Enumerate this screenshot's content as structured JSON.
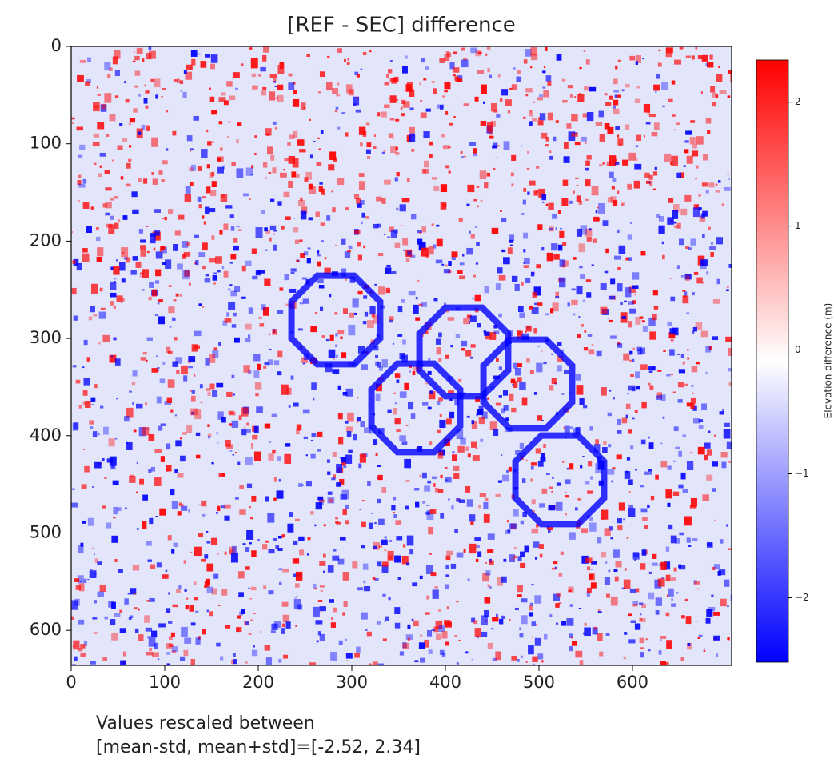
{
  "chart_data": {
    "type": "image",
    "title": "[REF - SEC] difference",
    "xlim": [
      0,
      706
    ],
    "xticks": [
      0,
      100,
      200,
      300,
      400,
      500,
      600
    ],
    "ylim": [
      636,
      0
    ],
    "yticks": [
      0,
      100,
      200,
      300,
      400,
      500,
      600
    ],
    "colorbar": {
      "label": "Elevation difference (m)",
      "lim": [
        -2.52,
        2.34
      ],
      "ticks": [
        {
          "value": -2,
          "label": "−2"
        },
        {
          "value": -1,
          "label": "−1"
        },
        0,
        1,
        2
      ],
      "colors": [
        "#0000ff",
        "#ffffff",
        "#ff0000"
      ]
    },
    "annotation": [
      "Values rescaled between",
      "[mean-std, mean+std]=[-2.52, 2.34]"
    ]
  }
}
